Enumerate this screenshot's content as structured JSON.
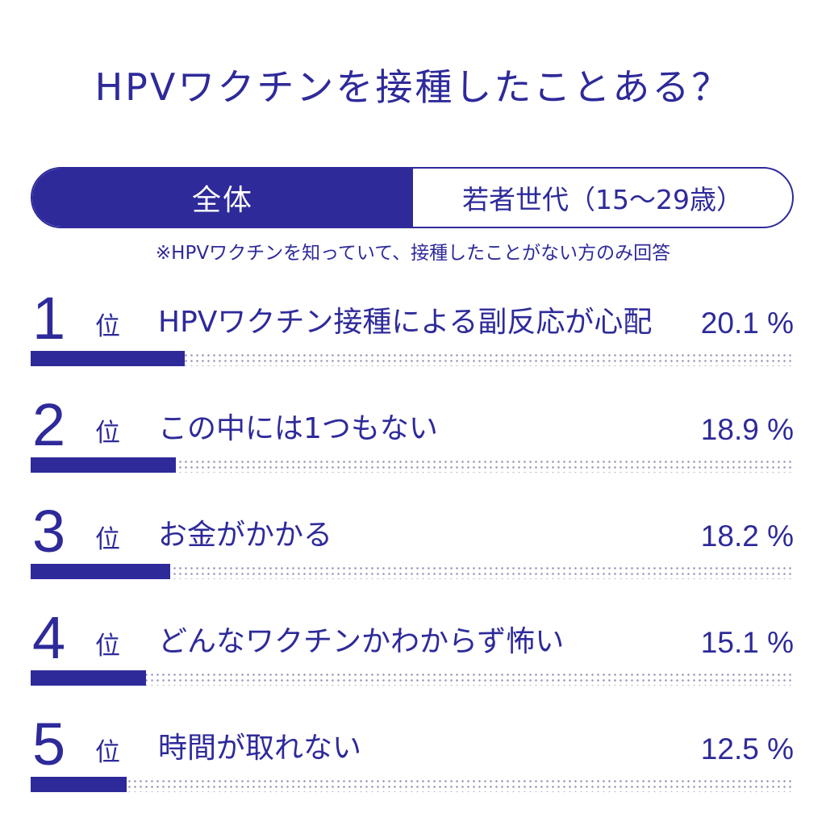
{
  "title": "HPVワクチンを接種したことある？",
  "tabs": {
    "active": "全体",
    "inactive": "若者世代（15〜29歳）"
  },
  "note": "※HPVワクチンを知っていて、接種したことがない方のみ回答",
  "colors": {
    "accent": "#2e2a9a",
    "dots": "#9a98b8"
  },
  "chart_data": {
    "type": "bar",
    "unit": "%",
    "rank_suffix": "位",
    "items": [
      {
        "rank": "1",
        "label": "HPVワクチン接種による副反応が心配",
        "value": 20.1,
        "value_label": "20.1 %"
      },
      {
        "rank": "2",
        "label": "この中には1つもない",
        "value": 18.9,
        "value_label": "18.9 %"
      },
      {
        "rank": "3",
        "label": "お金がかかる",
        "value": 18.2,
        "value_label": "18.2 %"
      },
      {
        "rank": "4",
        "label": "どんなワクチンかわからず怖い",
        "value": 15.1,
        "value_label": "15.1 %"
      },
      {
        "rank": "5",
        "label": "時間が取れない",
        "value": 12.5,
        "value_label": "12.5 %"
      }
    ]
  }
}
